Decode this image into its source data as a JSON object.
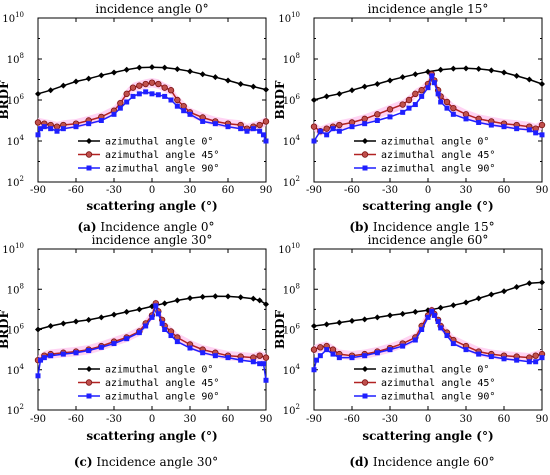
{
  "figure": {
    "y_tick_labels": [
      "10",
      "10",
      "10",
      "10",
      "10"
    ],
    "y_tick_exponents": [
      "2",
      "4",
      "6",
      "8",
      "10"
    ],
    "x_tick_labels": [
      "-90",
      "-60",
      "-30",
      "0",
      "30",
      "60",
      "90"
    ]
  },
  "legend_entries": [
    "azimuthal angle 0°",
    "azimuthal angle 45°",
    "azimuthal angle 90°"
  ],
  "colors": {
    "azimuth_0": "#000000",
    "azimuth_45": "#b22222",
    "azimuth_45_fill": "#c0504d",
    "azimuth_90": "#1f1fff",
    "band": "#ffc8f0"
  },
  "chart_data": [
    {
      "type": "line",
      "panel_label": "(a)",
      "caption": "Incidence angle 0°",
      "title": "incidence angle 0°",
      "xlabel": "scattering angle (°)",
      "ylabel": "BRDF",
      "xlim": [
        -90,
        90
      ],
      "ylim": [
        100,
        10000000000
      ],
      "yscale": "log",
      "legend_position": "lower-center",
      "series": [
        {
          "name": "azimuthal angle 0°",
          "x": [
            -90,
            -80,
            -70,
            -60,
            -50,
            -40,
            -30,
            -20,
            -10,
            0,
            10,
            20,
            30,
            40,
            50,
            60,
            70,
            80,
            90
          ],
          "values": [
            2000000,
            3000000,
            5000000,
            8000000,
            11000000,
            16000000,
            22000000,
            30000000,
            38000000,
            40000000,
            38000000,
            32000000,
            25000000,
            18000000,
            13000000,
            9000000,
            6000000,
            4500000,
            3200000
          ]
        },
        {
          "name": "azimuthal angle 45°",
          "x": [
            -90,
            -85,
            -80,
            -75,
            -70,
            -60,
            -50,
            -40,
            -30,
            -25,
            -20,
            -15,
            -10,
            -5,
            0,
            5,
            10,
            15,
            20,
            25,
            30,
            40,
            50,
            60,
            70,
            75,
            80,
            85,
            90
          ],
          "values": [
            80000,
            70000,
            60000,
            50000,
            60000,
            70000,
            100000,
            150000,
            300000,
            700000,
            2000000,
            4000000,
            5000000,
            6000000,
            7000000,
            6000000,
            4000000,
            3000000,
            1000000,
            500000,
            250000,
            140000,
            90000,
            70000,
            60000,
            40000,
            50000,
            60000,
            90000
          ]
        },
        {
          "name": "azimuthal angle 90°",
          "x": [
            -90,
            -88,
            -85,
            -80,
            -75,
            -70,
            -60,
            -50,
            -40,
            -30,
            -25,
            -20,
            -15,
            -10,
            -5,
            0,
            5,
            10,
            15,
            20,
            25,
            30,
            40,
            50,
            60,
            70,
            75,
            80,
            85,
            88,
            90
          ],
          "values": [
            20000,
            40000,
            50000,
            40000,
            30000,
            40000,
            50000,
            70000,
            100000,
            200000,
            400000,
            800000,
            1500000,
            2000000,
            2500000,
            2000000,
            1800000,
            1500000,
            1000000,
            500000,
            300000,
            200000,
            90000,
            70000,
            50000,
            40000,
            30000,
            40000,
            30000,
            20000,
            10000
          ]
        }
      ]
    },
    {
      "type": "line",
      "panel_label": "(b)",
      "caption": "Incidence angle 15°",
      "title": "incidence angle 15°",
      "xlabel": "scattering angle (°)",
      "ylabel": "BRDF",
      "xlim": [
        -90,
        90
      ],
      "ylim": [
        100,
        10000000000
      ],
      "yscale": "log",
      "legend_position": "lower-center",
      "series": [
        {
          "name": "azimuthal angle 0°",
          "x": [
            -90,
            -80,
            -70,
            -60,
            -50,
            -40,
            -30,
            -20,
            -10,
            0,
            10,
            20,
            30,
            40,
            50,
            60,
            70,
            80,
            90
          ],
          "values": [
            1000000,
            1500000,
            2000000,
            3000000,
            4500000,
            6000000,
            9000000,
            13000000,
            18000000,
            24000000,
            30000000,
            34000000,
            35000000,
            33000000,
            28000000,
            22000000,
            15000000,
            10000000,
            6000000
          ]
        },
        {
          "name": "azimuthal angle 45°",
          "x": [
            -90,
            -85,
            -80,
            -75,
            -70,
            -60,
            -50,
            -40,
            -30,
            -20,
            -15,
            -10,
            -5,
            0,
            3,
            5,
            8,
            10,
            15,
            20,
            30,
            40,
            50,
            60,
            70,
            80,
            85,
            90
          ],
          "values": [
            50000,
            30000,
            40000,
            50000,
            60000,
            80000,
            120000,
            200000,
            350000,
            600000,
            1000000,
            2000000,
            3000000,
            6000000,
            18000000,
            9000000,
            3000000,
            1500000,
            800000,
            400000,
            200000,
            120000,
            90000,
            70000,
            60000,
            50000,
            40000,
            60000
          ]
        },
        {
          "name": "azimuthal angle 90°",
          "x": [
            -90,
            -85,
            -80,
            -75,
            -70,
            -60,
            -50,
            -40,
            -30,
            -20,
            -15,
            -10,
            -5,
            0,
            3,
            5,
            8,
            10,
            15,
            20,
            30,
            40,
            50,
            60,
            70,
            80,
            85,
            90
          ],
          "values": [
            10000,
            30000,
            20000,
            40000,
            30000,
            50000,
            70000,
            100000,
            150000,
            250000,
            400000,
            600000,
            1500000,
            4000000,
            15000000,
            7000000,
            2000000,
            800000,
            400000,
            200000,
            120000,
            80000,
            60000,
            50000,
            40000,
            35000,
            25000,
            20000
          ]
        }
      ]
    },
    {
      "type": "line",
      "panel_label": "(c)",
      "caption": "Incidence angle 30°",
      "title": "incidence angle 30°",
      "xlabel": "scattering angle (°)",
      "ylabel": "BRDF",
      "xlim": [
        -90,
        90
      ],
      "ylim": [
        100,
        10000000000
      ],
      "yscale": "log",
      "legend_position": "lower-center",
      "series": [
        {
          "name": "azimuthal angle 0°",
          "x": [
            -90,
            -80,
            -70,
            -60,
            -50,
            -40,
            -30,
            -20,
            -10,
            0,
            10,
            20,
            30,
            40,
            50,
            60,
            70,
            80,
            85,
            90
          ],
          "values": [
            1000000,
            1500000,
            2000000,
            2500000,
            3000000,
            4000000,
            5500000,
            7500000,
            10000000,
            14000000,
            20000000,
            28000000,
            36000000,
            42000000,
            45000000,
            44000000,
            40000000,
            34000000,
            28000000,
            18000000
          ]
        },
        {
          "name": "azimuthal angle 45°",
          "x": [
            -90,
            -85,
            -80,
            -70,
            -60,
            -50,
            -40,
            -30,
            -20,
            -10,
            -5,
            0,
            3,
            5,
            8,
            10,
            15,
            20,
            30,
            40,
            50,
            60,
            70,
            80,
            85,
            90
          ],
          "values": [
            30000,
            50000,
            60000,
            70000,
            80000,
            100000,
            150000,
            250000,
            400000,
            800000,
            2000000,
            5000000,
            20000000,
            8000000,
            3000000,
            1500000,
            800000,
            400000,
            180000,
            100000,
            70000,
            50000,
            45000,
            40000,
            50000,
            40000
          ]
        },
        {
          "name": "azimuthal angle 90°",
          "x": [
            -90,
            -88,
            -85,
            -80,
            -70,
            -60,
            -50,
            -40,
            -30,
            -20,
            -10,
            -5,
            0,
            3,
            5,
            8,
            10,
            15,
            20,
            30,
            40,
            50,
            60,
            70,
            80,
            85,
            88,
            90
          ],
          "values": [
            5000,
            30000,
            40000,
            50000,
            60000,
            70000,
            90000,
            130000,
            200000,
            350000,
            700000,
            1500000,
            4000000,
            15000000,
            6000000,
            2000000,
            1000000,
            500000,
            250000,
            120000,
            70000,
            50000,
            40000,
            30000,
            25000,
            20000,
            20000,
            3000
          ]
        }
      ]
    },
    {
      "type": "line",
      "panel_label": "(d)",
      "caption": "Incidence angle 60°",
      "title": "incidence angle 60°",
      "xlabel": "scattering angle (°)",
      "ylabel": "BRDF",
      "xlim": [
        -90,
        90
      ],
      "ylim": [
        100,
        10000000000
      ],
      "yscale": "log",
      "legend_position": "lower-center",
      "series": [
        {
          "name": "azimuthal angle 0°",
          "x": [
            -90,
            -80,
            -70,
            -60,
            -50,
            -40,
            -30,
            -20,
            -10,
            0,
            10,
            20,
            30,
            40,
            50,
            60,
            70,
            80,
            90
          ],
          "values": [
            1500000,
            1800000,
            2200000,
            2700000,
            3200000,
            4000000,
            5000000,
            6000000,
            7500000,
            9000000,
            12000000,
            16000000,
            22000000,
            35000000,
            55000000,
            80000000,
            130000000,
            200000000,
            220000000
          ]
        },
        {
          "name": "azimuthal angle 45°",
          "x": [
            -90,
            -85,
            -80,
            -75,
            -70,
            -60,
            -50,
            -40,
            -30,
            -20,
            -10,
            -5,
            0,
            3,
            5,
            8,
            10,
            15,
            20,
            30,
            40,
            50,
            60,
            70,
            80,
            85,
            90
          ],
          "values": [
            100000,
            130000,
            150000,
            100000,
            60000,
            50000,
            60000,
            80000,
            120000,
            200000,
            400000,
            1500000,
            5000000,
            9000000,
            6000000,
            3000000,
            1500000,
            700000,
            300000,
            150000,
            80000,
            60000,
            50000,
            45000,
            40000,
            50000,
            60000
          ]
        },
        {
          "name": "azimuthal angle 90°",
          "x": [
            -90,
            -88,
            -85,
            -80,
            -75,
            -70,
            -60,
            -50,
            -40,
            -30,
            -20,
            -10,
            -5,
            0,
            3,
            5,
            8,
            10,
            15,
            20,
            30,
            40,
            50,
            60,
            70,
            80,
            85,
            90
          ],
          "values": [
            10000,
            30000,
            50000,
            100000,
            60000,
            40000,
            40000,
            50000,
            70000,
            100000,
            150000,
            300000,
            1000000,
            4000000,
            8000000,
            5000000,
            2500000,
            1200000,
            500000,
            200000,
            100000,
            60000,
            45000,
            35000,
            30000,
            25000,
            25000,
            40000
          ]
        }
      ]
    }
  ]
}
